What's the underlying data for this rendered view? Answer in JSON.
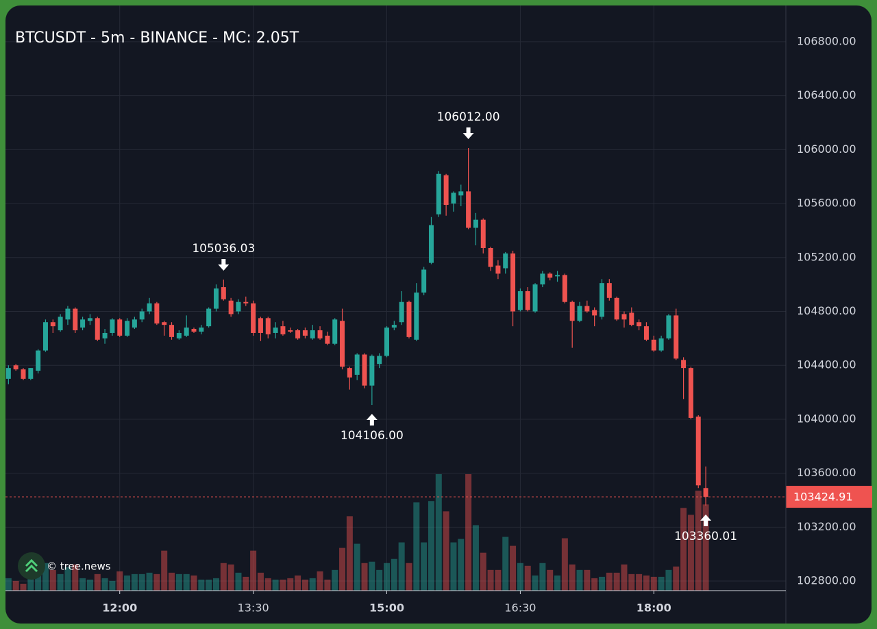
{
  "chart_data": {
    "type": "candlestick",
    "title": "BTCUSDT - 5m - BINANCE - MC: 2.05T",
    "watermark": "© tree.news",
    "x": [
      "10:45",
      "10:50",
      "10:55",
      "11:00",
      "11:05",
      "11:10",
      "11:15",
      "11:20",
      "11:25",
      "11:30",
      "11:35",
      "11:40",
      "11:45",
      "11:50",
      "11:55",
      "12:00",
      "12:05",
      "12:10",
      "12:15",
      "12:20",
      "12:25",
      "12:30",
      "12:35",
      "12:40",
      "12:45",
      "12:50",
      "12:55",
      "13:00",
      "13:05",
      "13:10",
      "13:15",
      "13:20",
      "13:25",
      "13:30",
      "13:35",
      "13:40",
      "13:45",
      "13:50",
      "13:55",
      "14:00",
      "14:05",
      "14:10",
      "14:15",
      "14:20",
      "14:25",
      "14:30",
      "14:35",
      "14:40",
      "14:45",
      "14:50",
      "14:55",
      "15:00",
      "15:05",
      "15:10",
      "15:15",
      "15:20",
      "15:25",
      "15:30",
      "15:35",
      "15:40",
      "15:45",
      "15:50",
      "15:55",
      "16:00",
      "16:05",
      "16:10",
      "16:15",
      "16:20",
      "16:25",
      "16:30",
      "16:35",
      "16:40",
      "16:45",
      "16:50",
      "16:55",
      "17:00",
      "17:05",
      "17:10",
      "17:15",
      "17:20",
      "17:25",
      "17:30",
      "17:35",
      "17:40",
      "17:45",
      "17:50",
      "17:55",
      "18:00",
      "18:05",
      "18:10",
      "18:15",
      "18:20",
      "18:25",
      "18:30",
      "18:35"
    ],
    "open": [
      104300,
      104400,
      104370,
      104300,
      104360,
      104510,
      104720,
      104660,
      104740,
      104820,
      104680,
      104730,
      104750,
      104600,
      104640,
      104740,
      104620,
      104680,
      104740,
      104800,
      104860,
      104720,
      104700,
      104600,
      104620,
      104670,
      104650,
      104690,
      104820,
      104980,
      104880,
      104800,
      104870,
      104860,
      104750,
      104750,
      104640,
      104690,
      104660,
      104660,
      104660,
      104600,
      104660,
      104620,
      104560,
      104730,
      104380,
      104330,
      104480,
      104250,
      104410,
      104470,
      104680,
      104720,
      104870,
      104590,
      104940,
      105160,
      105520,
      105810,
      105600,
      105660,
      105690,
      105420,
      105480,
      105270,
      105140,
      105120,
      105230,
      104810,
      104950,
      104800,
      105000,
      105080,
      105060,
      105070,
      104870,
      104730,
      104840,
      104810,
      104760,
      105010,
      104900,
      104780,
      104790,
      104720,
      104690,
      104590,
      104510,
      104600,
      104770,
      104440,
      104380,
      104020,
      103490
    ],
    "high": [
      104400,
      104410,
      104380,
      104380,
      104520,
      104740,
      104740,
      104780,
      104840,
      104830,
      104760,
      104780,
      104760,
      104670,
      104750,
      104750,
      104750,
      104760,
      104820,
      104900,
      104870,
      104730,
      104720,
      104660,
      104770,
      104680,
      104700,
      104830,
      105000,
      105036.03,
      104900,
      104890,
      104910,
      104880,
      104760,
      104760,
      104720,
      104730,
      104680,
      104670,
      104680,
      104700,
      104690,
      104650,
      104750,
      104820,
      104390,
      104490,
      104490,
      104480,
      104490,
      104690,
      104730,
      104950,
      104880,
      105010,
      105130,
      105500,
      105840,
      105820,
      105690,
      105740,
      106012,
      105530,
      105490,
      105280,
      105180,
      105240,
      105250,
      104970,
      104980,
      105010,
      105100,
      105090,
      105100,
      105080,
      104880,
      104870,
      104880,
      104830,
      105040,
      105040,
      104910,
      104800,
      104830,
      104740,
      104720,
      104620,
      104620,
      104780,
      104820,
      104460,
      104390,
      104030,
      103650
    ],
    "low": [
      104260,
      104360,
      104290,
      104290,
      104340,
      104500,
      104640,
      104650,
      104700,
      104640,
      104660,
      104700,
      104580,
      104560,
      104620,
      104610,
      104610,
      104670,
      104720,
      104780,
      104700,
      104620,
      104590,
      104590,
      104610,
      104640,
      104630,
      104680,
      104800,
      104880,
      104760,
      104780,
      104840,
      104620,
      104580,
      104600,
      104600,
      104620,
      104640,
      104590,
      104600,
      104590,
      104590,
      104550,
      104550,
      104370,
      104220,
      104290,
      104230,
      104106,
      104380,
      104460,
      104660,
      104700,
      104600,
      104580,
      104920,
      105150,
      105500,
      105510,
      105540,
      105580,
      105410,
      105290,
      105230,
      105100,
      105040,
      105080,
      104690,
      104800,
      104800,
      104790,
      104980,
      105030,
      105020,
      104860,
      104530,
      104720,
      104790,
      104690,
      104740,
      104880,
      104730,
      104680,
      104690,
      104660,
      104580,
      104500,
      104500,
      104590,
      104440,
      104150,
      104000,
      103490,
      103360.01
    ],
    "close": [
      104380,
      104370,
      104300,
      104380,
      104510,
      104720,
      104690,
      104760,
      104820,
      104660,
      104740,
      104750,
      104590,
      104640,
      104740,
      104620,
      104730,
      104740,
      104800,
      104860,
      104710,
      104700,
      104610,
      104640,
      104680,
      104650,
      104680,
      104820,
      104970,
      104890,
      104780,
      104870,
      104860,
      104640,
      104640,
      104630,
      104680,
      104630,
      104650,
      104600,
      104620,
      104660,
      104600,
      104560,
      104740,
      104390,
      104310,
      104480,
      104250,
      104470,
      104470,
      104680,
      104700,
      104870,
      104610,
      104940,
      105110,
      105440,
      105820,
      105590,
      105680,
      105690,
      105420,
      105480,
      105270,
      105130,
      105080,
      105230,
      104800,
      104950,
      104810,
      105000,
      105080,
      105050,
      105070,
      104870,
      104730,
      104840,
      104800,
      104770,
      105010,
      104900,
      104740,
      104740,
      104700,
      104690,
      104590,
      104510,
      104600,
      104770,
      104450,
      104380,
      104010,
      103510,
      103424.91
    ],
    "volume": [
      18,
      14,
      10,
      18,
      28,
      40,
      30,
      24,
      34,
      38,
      18,
      16,
      24,
      18,
      14,
      28,
      22,
      24,
      24,
      26,
      24,
      58,
      26,
      24,
      24,
      22,
      16,
      16,
      18,
      40,
      38,
      26,
      20,
      58,
      26,
      18,
      16,
      16,
      18,
      22,
      16,
      18,
      28,
      16,
      30,
      62,
      108,
      68,
      40,
      42,
      30,
      40,
      46,
      70,
      40,
      128,
      70,
      130,
      169,
      115,
      70,
      75,
      169,
      95,
      55,
      30,
      30,
      78,
      65,
      40,
      36,
      22,
      40,
      30,
      22,
      76,
      38,
      30,
      30,
      18,
      20,
      26,
      26,
      38,
      24,
      24,
      22,
      20,
      20,
      30,
      35,
      120,
      110,
      145,
      125
    ],
    "up_color": "#26a69a",
    "down_color": "#ef5350",
    "xlim": [
      "10:43",
      "19:29"
    ],
    "xticks": [
      "12:00",
      "13:30",
      "15:00",
      "16:30",
      "18:00"
    ],
    "ylim": [
      102729,
      107069
    ],
    "yticks": [
      {
        "value": 102800,
        "label": "102800.00"
      },
      {
        "value": 103200,
        "label": "103200.00"
      },
      {
        "value": 103600,
        "label": "103600.00"
      },
      {
        "value": 104000,
        "label": "104000.00"
      },
      {
        "value": 104400,
        "label": "104400.00"
      },
      {
        "value": 104800,
        "label": "104800.00"
      },
      {
        "value": 105200,
        "label": "105200.00"
      },
      {
        "value": 105600,
        "label": "105600.00"
      },
      {
        "value": 106000,
        "label": "106000.00"
      },
      {
        "value": 106400,
        "label": "106400.00"
      },
      {
        "value": 106800,
        "label": "106800.00"
      }
    ],
    "grid": true,
    "last_price": {
      "value": 103424.91,
      "label": "103424.91"
    },
    "annotations": [
      {
        "x": "13:10",
        "kind": "high",
        "value": 105036.03,
        "label": "105036.03"
      },
      {
        "x": "15:55",
        "kind": "high",
        "value": 106012,
        "label": "106012.00"
      },
      {
        "x": "14:50",
        "kind": "low",
        "value": 104106,
        "label": "104106.00"
      },
      {
        "x": "18:35",
        "kind": "low",
        "value": 103360.01,
        "label": "103360.01"
      }
    ]
  }
}
